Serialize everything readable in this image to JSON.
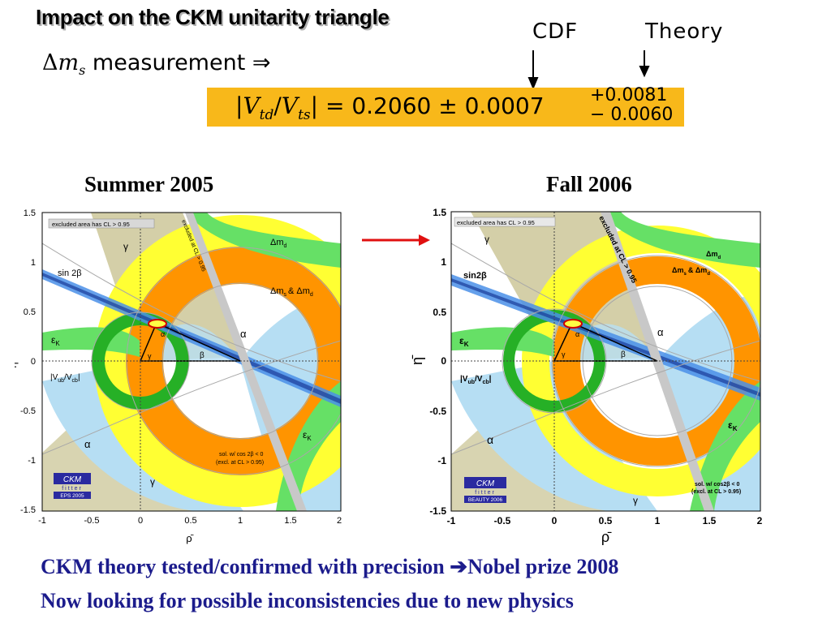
{
  "slide": {
    "title": "Impact on the CKM unitarity triangle",
    "measurement": {
      "symbol": "Δ",
      "var": "m",
      "sub": "s",
      "text": "measurement ⇒"
    },
    "labels": {
      "cdf": "CDF",
      "theory": "Theory"
    },
    "formula": {
      "lhs_v1": "V",
      "lhs_sub1": "td",
      "lhs_v2": "V",
      "lhs_sub2": "ts",
      "value": "0.2060 ± 0.0007",
      "err_plus": "+0.0081",
      "err_minus": "− 0.0060",
      "highlight": "#f8b81a"
    },
    "left_label": "Summer 2005",
    "right_label": "Fall 2006",
    "bottom_line1": "CKM theory tested/confirmed with precision ",
    "bottom_arrow": "➔",
    "bottom_line1b": "Nobel prize 2008",
    "bottom_line2": "Now looking for possible inconsistencies due to new physics"
  },
  "plots": {
    "left": {
      "excluded_note": "excluded area has CL > 0.95",
      "xticks": [
        "-1",
        "-0.5",
        "0",
        "0.5",
        "1",
        "1.5",
        "2"
      ],
      "yticks": [
        "1.5",
        "1",
        "0.5",
        "0",
        "-0.5",
        "-1",
        "-1.5"
      ],
      "xlabel": "ρ̄",
      "ylabel": "η̄",
      "labels": {
        "gamma_top": "γ",
        "gamma_bottom": "γ",
        "sin2b": "sin 2β",
        "dmd": "Δm",
        "dmd_sub": "d",
        "dms": "Δm",
        "dms_sub": "s",
        "dms_amp": "& Δm",
        "dms_sub2": "d",
        "epsK": "ε",
        "epsK_sub": "K",
        "epsK2": "ε",
        "epsK2_sub": "K",
        "vub": "|V",
        "vub_sub": "ub",
        "vcb": "/V",
        "vcb_sub": "cb",
        "vub_end": "|",
        "alpha1": "α",
        "alpha2": "α",
        "alpha_tri": "α",
        "beta_tri": "β",
        "gamma_tri": "γ",
        "excl_cl": "excluded at CL > 0.95",
        "sol1": "sol. w/ cos 2β < 0",
        "sol2": "(excl. at CL > 0.95)",
        "ckm": "CKM",
        "fitter": "fitter",
        "badge": "EPS 2005"
      }
    },
    "right": {
      "excluded_note": "excluded area has CL > 0.95",
      "xticks": [
        "-1",
        "-0.5",
        "0",
        "0.5",
        "1",
        "1.5",
        "2"
      ],
      "yticks": [
        "1.5",
        "1",
        "0.5",
        "0",
        "-0.5",
        "-1",
        "-1.5"
      ],
      "xlabel": "ρ̄",
      "ylabel": "η̄",
      "labels": {
        "gamma_top": "γ",
        "gamma_bottom": "γ",
        "sin2b": "sin2β",
        "dmd": "Δm",
        "dmd_sub": "d",
        "dms": "Δm",
        "dms_sub": "s",
        "dms_amp": "& Δm",
        "dms_sub2": "d",
        "epsK": "ε",
        "epsK_sub": "K",
        "epsK2": "ε",
        "epsK2_sub": "K",
        "vub": "|V",
        "vub_sub": "ub",
        "vcb": "/V",
        "vcb_sub": "cb",
        "vub_end": "|",
        "alpha1": "α",
        "alpha2": "α",
        "alpha_tri": "α",
        "beta_tri": "β",
        "gamma_tri": "γ",
        "excl_cl": "excluded at CL > 0.95",
        "sol1": "sol. w/ cos2β < 0",
        "sol2": "(excl. at CL > 0.95)",
        "ckm": "CKM",
        "fitter": "fitter",
        "badge": "BEAUTY 2006"
      }
    }
  }
}
